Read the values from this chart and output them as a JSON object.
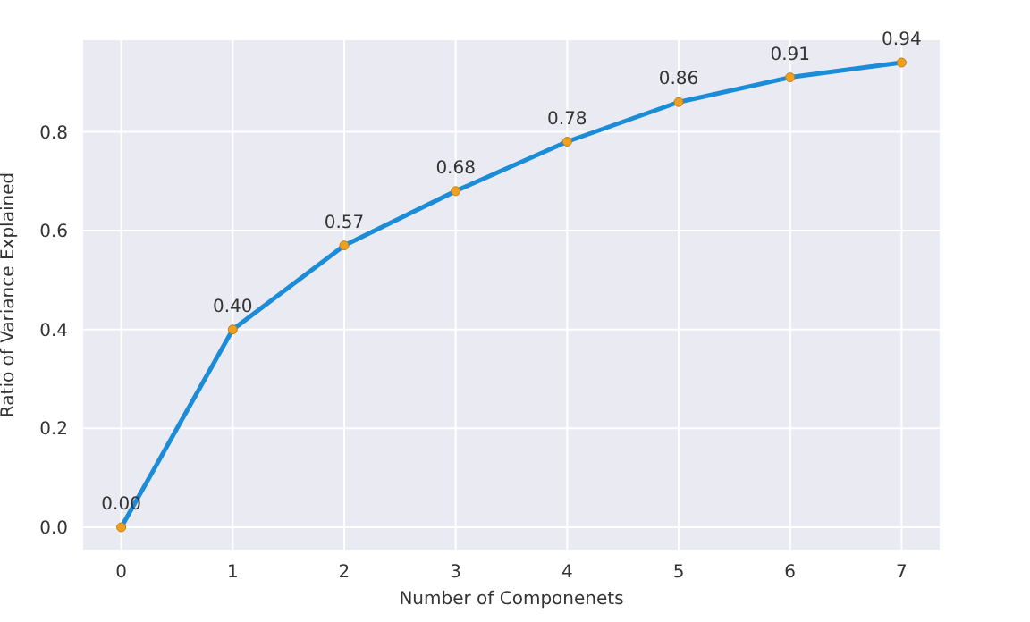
{
  "chart_data": {
    "type": "line",
    "xlabel": "Number of Componenets",
    "ylabel": "Ratio of Variance Explained",
    "x": [
      0,
      1,
      2,
      3,
      4,
      5,
      6,
      7
    ],
    "series": [
      {
        "color": "#1a8cd8",
        "values": [
          0.0,
          0.4,
          0.57,
          0.68,
          0.78,
          0.86,
          0.91,
          0.94
        ],
        "value_labels": [
          "0.00",
          "0.40",
          "0.57",
          "0.68",
          "0.78",
          "0.86",
          "0.91",
          "0.94"
        ]
      }
    ],
    "xlim": [
      -0.35,
      7.35
    ],
    "xticks": [
      0,
      1,
      2,
      3,
      4,
      5,
      6,
      7
    ],
    "ylim": [
      -0.047,
      0.987
    ],
    "yticks": [
      {
        "value": 0,
        "label": "0.0"
      },
      {
        "value": 0.2,
        "label": "0.2"
      },
      {
        "value": 0.4,
        "label": "0.4"
      },
      {
        "value": 0.6,
        "label": "0.6"
      },
      {
        "value": 0.8,
        "label": "0.8"
      }
    ],
    "grid": true,
    "marker": "circle",
    "line_style": "solid"
  }
}
